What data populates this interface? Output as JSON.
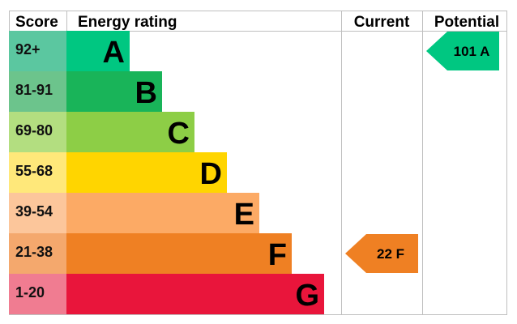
{
  "header": {
    "score": "Score",
    "energy_rating": "Energy rating",
    "current": "Current",
    "potential": "Potential"
  },
  "chart_data": {
    "type": "bar",
    "title": "",
    "categories": [
      "A",
      "B",
      "C",
      "D",
      "E",
      "F",
      "G"
    ],
    "score_ranges": [
      "92+",
      "81-91",
      "69-80",
      "55-68",
      "39-54",
      "21-38",
      "1-20"
    ],
    "bar_colors": [
      "#00c781",
      "#19b459",
      "#8dce46",
      "#ffd500",
      "#fcaa65",
      "#ef8023",
      "#e9153b"
    ],
    "score_cell_colors": [
      "#5bc7a0",
      "#6cc48c",
      "#b3de80",
      "#ffe87a",
      "#fcc69b",
      "#f4a86d",
      "#f07c91"
    ],
    "current": {
      "label": "22 F",
      "value": 22,
      "band": "F",
      "color": "#ef8023"
    },
    "potential": {
      "label": "101 A",
      "value": 101,
      "band": "A",
      "color": "#00c781"
    }
  }
}
